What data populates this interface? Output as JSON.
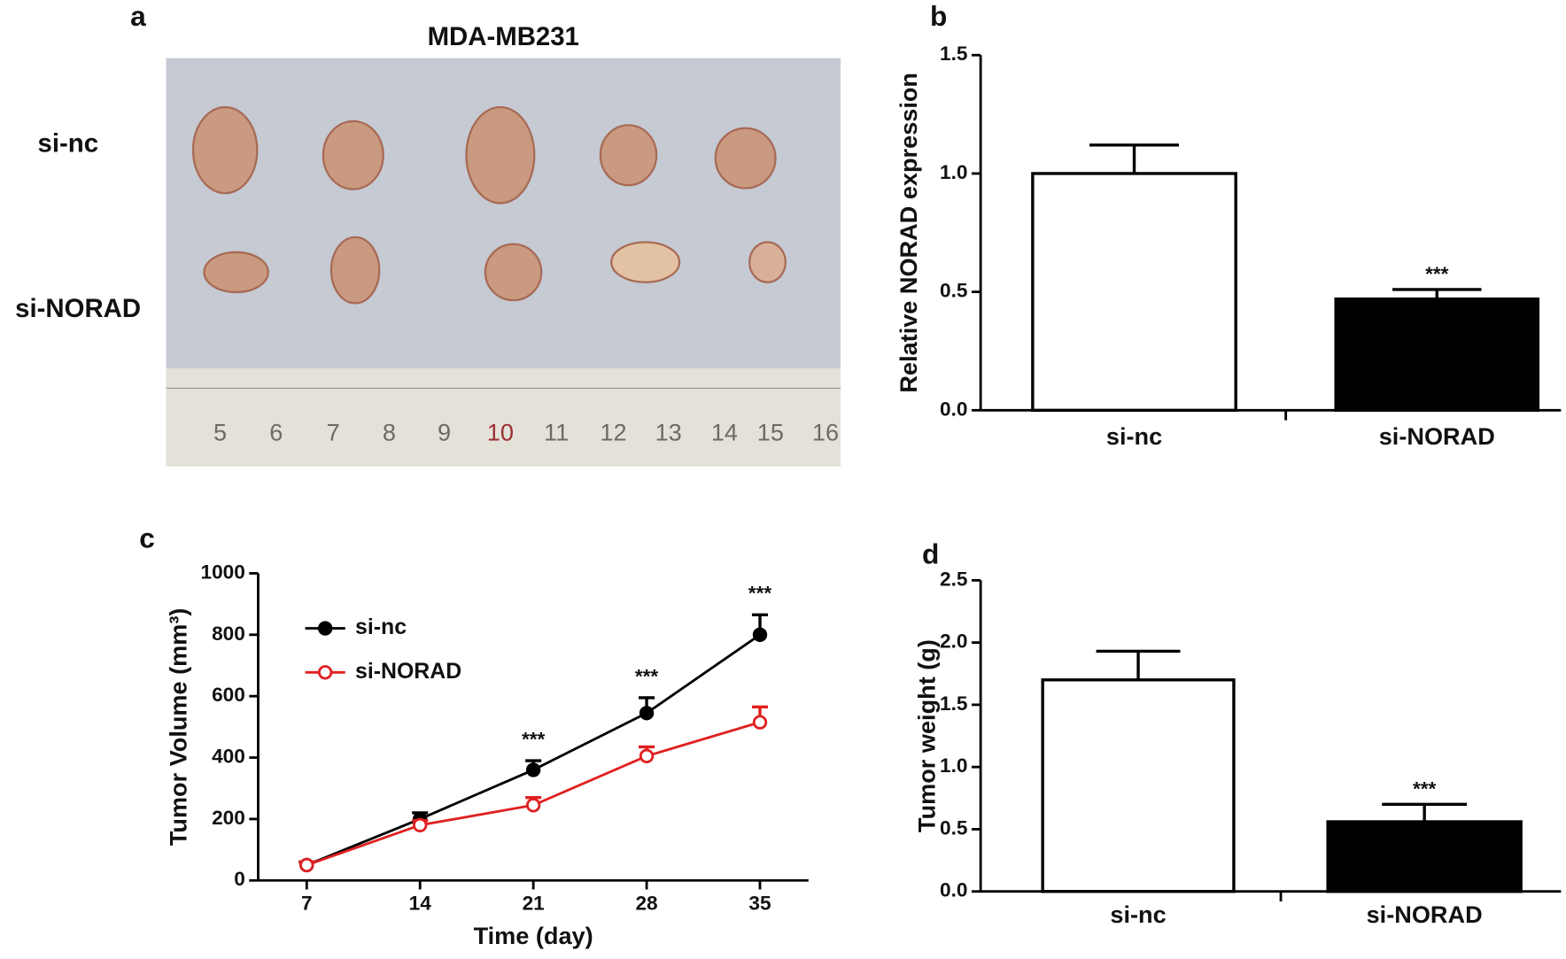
{
  "panels": [
    "a",
    "b",
    "c",
    "d"
  ],
  "photo": {
    "title": "MDA-MB231",
    "row_labels": [
      "si-nc",
      "si-NORAD"
    ],
    "ruler_labels": [
      "5",
      "6",
      "7",
      "8",
      "9",
      "10",
      "11",
      "12",
      "13",
      "14",
      "15",
      "16"
    ]
  },
  "chart_data": [
    {
      "type": "bar",
      "ylabel": "Relative NORAD expression",
      "categories": [
        "si-nc",
        "si-NORAD"
      ],
      "values": [
        1.0,
        0.47
      ],
      "errors": [
        0.12,
        0.04
      ],
      "colors": [
        "#ffffff",
        "#000000"
      ],
      "ylim": [
        0,
        1.5
      ],
      "yticks": [
        {
          "value": 0,
          "label": "0.0"
        },
        {
          "value": 0.5,
          "label": "0.5"
        },
        {
          "value": 1,
          "label": "1.0"
        },
        {
          "value": 1.5,
          "label": "1.5"
        }
      ],
      "annotations": [
        {
          "category": "si-NORAD",
          "text": "***"
        }
      ]
    },
    {
      "type": "line",
      "xlabel": "Time (day)",
      "ylabel": "Tumor Volume (mm³)",
      "x": [
        7,
        14,
        21,
        28,
        35
      ],
      "series": [
        {
          "name": "si-nc",
          "color": "#000000",
          "marker": "filled",
          "values": [
            50,
            200,
            360,
            545,
            800
          ],
          "errors": [
            10,
            20,
            30,
            50,
            65
          ]
        },
        {
          "name": "si-NORAD",
          "color": "#e02020",
          "marker": "open",
          "values": [
            50,
            180,
            245,
            405,
            515
          ],
          "errors": [
            10,
            15,
            25,
            30,
            50
          ]
        }
      ],
      "xlim": [
        4,
        38
      ],
      "xticks": [
        7,
        14,
        21,
        28,
        35
      ],
      "ylim": [
        0,
        1000
      ],
      "yticks": [
        0,
        200,
        400,
        600,
        800,
        1000
      ],
      "annotations": [
        {
          "x": 21,
          "text": "***"
        },
        {
          "x": 28,
          "text": "***"
        },
        {
          "x": 35,
          "text": "***"
        }
      ]
    },
    {
      "type": "bar",
      "ylabel": "Tumor weight (g)",
      "categories": [
        "si-nc",
        "si-NORAD"
      ],
      "values": [
        1.7,
        0.56
      ],
      "errors": [
        0.23,
        0.14
      ],
      "colors": [
        "#ffffff",
        "#000000"
      ],
      "ylim": [
        0,
        2.5
      ],
      "yticks": [
        {
          "value": 0,
          "label": "0.0"
        },
        {
          "value": 0.5,
          "label": "0.5"
        },
        {
          "value": 1,
          "label": "1.0"
        },
        {
          "value": 1.5,
          "label": "1.5"
        },
        {
          "value": 2,
          "label": "2.0"
        },
        {
          "value": 2.5,
          "label": "2.5"
        }
      ],
      "annotations": [
        {
          "category": "si-NORAD",
          "text": "***"
        }
      ]
    }
  ]
}
